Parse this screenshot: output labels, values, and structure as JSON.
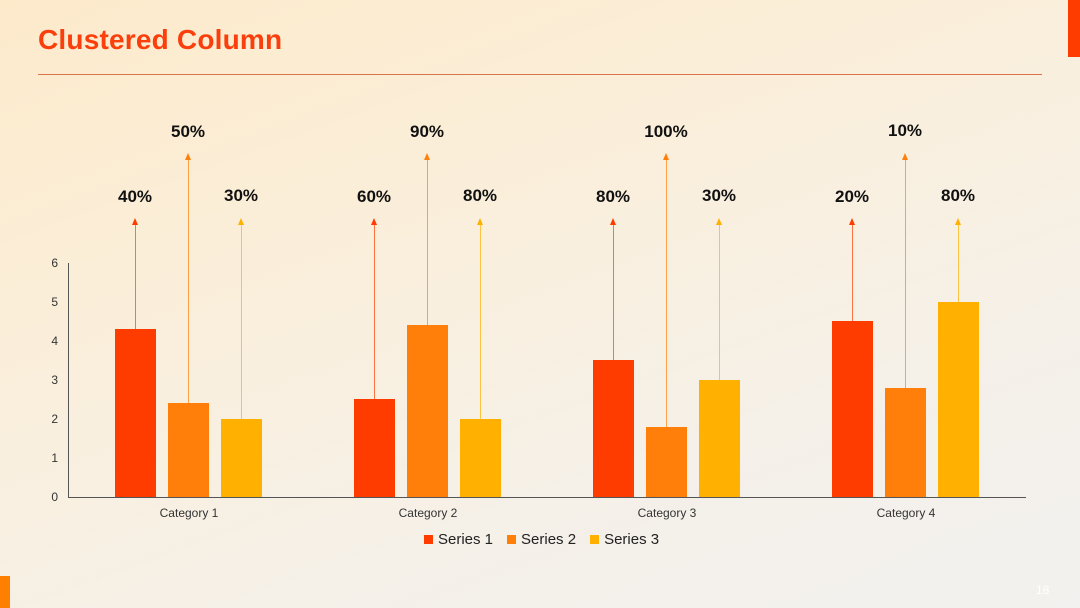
{
  "slide": {
    "title": "Clustered Column",
    "page_number": "18",
    "accent_colors": {
      "title": "#fa3f0c",
      "top_bar": "#ff3c00",
      "bottom_bar": "#ff7f00"
    }
  },
  "chart_data": {
    "type": "bar",
    "title": "Clustered Column",
    "categories": [
      "Category 1",
      "Category 2",
      "Category 3",
      "Category 4"
    ],
    "series": [
      {
        "name": "Series 1",
        "color": "#ff3c00",
        "values": [
          4.3,
          2.5,
          3.5,
          4.5
        ],
        "annotations": [
          "40%",
          "60%",
          "80%",
          "20%"
        ]
      },
      {
        "name": "Series 2",
        "color": "#ff7f0a",
        "values": [
          2.4,
          4.4,
          1.8,
          2.8
        ],
        "annotations": [
          "50%",
          "90%",
          "100%",
          "10%"
        ]
      },
      {
        "name": "Series 3",
        "color": "#ffb000",
        "values": [
          2.0,
          2.0,
          3.0,
          5.0
        ],
        "annotations": [
          "30%",
          "80%",
          "30%",
          "80%"
        ]
      }
    ],
    "yticks": [
      "0",
      "1",
      "2",
      "3",
      "4",
      "5",
      "6"
    ],
    "ylim": [
      0,
      6
    ],
    "xlabel": "",
    "ylabel": "",
    "grid": false,
    "legend_position": "bottom"
  }
}
